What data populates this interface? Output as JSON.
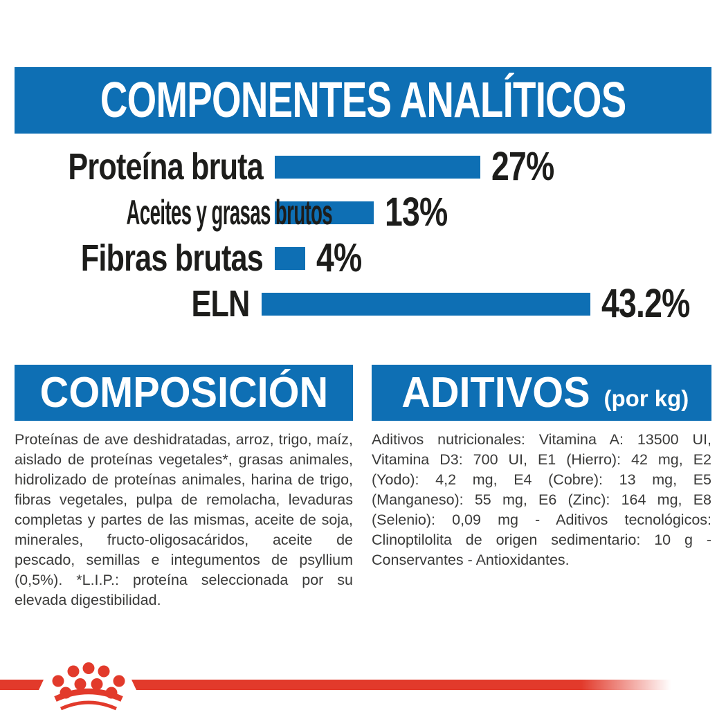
{
  "banner_main": {
    "title": "COMPONENTES ANALÍTICOS"
  },
  "chart_data": {
    "type": "bar",
    "orientation": "horizontal",
    "title": "COMPONENTES ANALÍTICOS",
    "unit": "%",
    "categories": [
      "Proteína bruta",
      "Aceites y grasas brutos",
      "Fibras brutas",
      "ELN"
    ],
    "values": [
      27,
      13,
      4,
      43.2
    ],
    "value_labels": [
      "27%",
      "13%",
      "4%",
      "43.2%"
    ],
    "xlim": [
      0,
      46
    ],
    "grid": false,
    "bar_color": "#0E6FB4"
  },
  "composition": {
    "title": "COMPOSICIÓN",
    "body": "Proteínas de ave deshidratadas, arroz, trigo, maíz, aislado de proteínas vegetales*, grasas animales, hidrolizado de proteínas animales, harina de trigo, fibras vegetales, pulpa de remolacha, levaduras completas y partes de las mismas, aceite de soja, minerales, fructo-oligosacáridos, aceite de pescado, semillas e integumentos de psyllium (0,5%). *L.I.P.: proteína seleccionada por su elevada digestibilidad."
  },
  "additives": {
    "title": "ADITIVOS",
    "subtitle": "(por kg)",
    "body": "Aditivos nutricionales: Vitamina A: 13500 UI, Vitamina D3: 700 UI, E1 (Hierro): 42 mg, E2 (Yodo): 4,2 mg, E4 (Cobre): 13 mg, E5 (Manganeso): 55 mg, E6 (Zinc): 164 mg, E8 (Selenio): 0,09 mg - Aditivos tecnológicos: Clinoptilolita de origen sedimentario: 10 g - Conservantes - Antioxidantes."
  },
  "footer": {
    "logo": "royal-canin-crown"
  },
  "colors": {
    "brand_blue": "#0E6FB4",
    "brand_red": "#E23A2B",
    "label_black": "#1D1D1B",
    "body_text": "#3A3A39"
  }
}
